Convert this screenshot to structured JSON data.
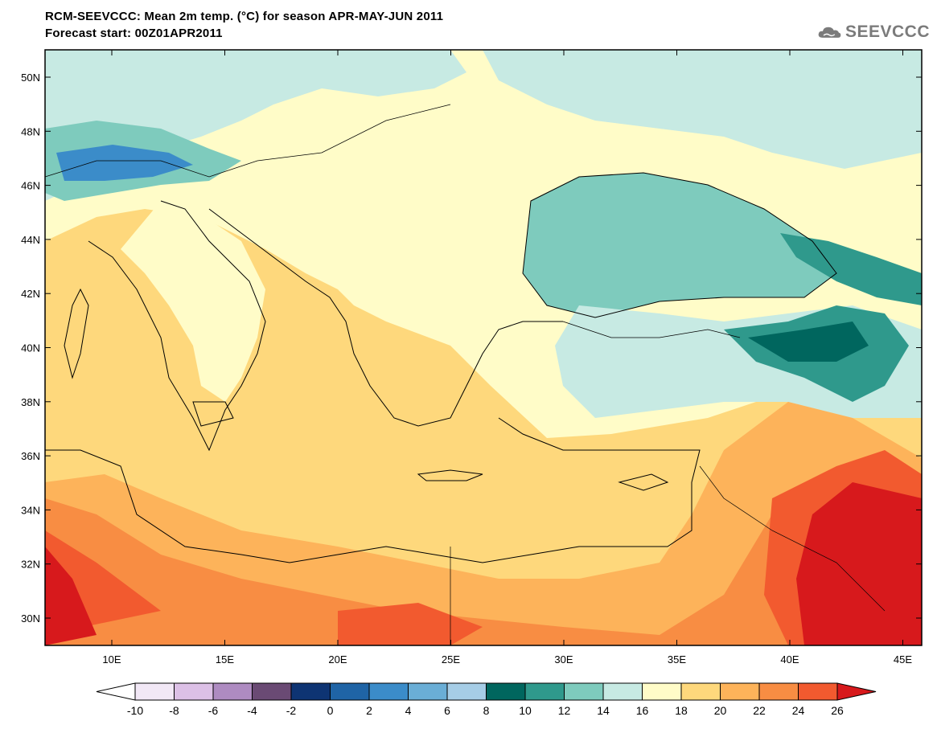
{
  "header": {
    "title_line1": "RCM-SEEVCCC: Mean 2m temp. (°C) for season APR-MAY-JUN 2011",
    "title_line2": "Forecast start: 00Z01APR2011",
    "logo_text": "SEEVCCC"
  },
  "axes": {
    "lat_labels": [
      "50N",
      "48N",
      "46N",
      "44N",
      "42N",
      "40N",
      "38N",
      "36N",
      "34N",
      "32N",
      "30N"
    ],
    "lon_labels": [
      "10E",
      "15E",
      "20E",
      "25E",
      "30E",
      "35E",
      "40E",
      "45E"
    ]
  },
  "colorbar": {
    "labels": [
      "-10",
      "-8",
      "-6",
      "-4",
      "-2",
      "0",
      "2",
      "4",
      "6",
      "8",
      "10",
      "12",
      "14",
      "16",
      "18",
      "20",
      "22",
      "24",
      "26"
    ],
    "low_color": "#ffffff",
    "high_color": "#d7191c",
    "colors": [
      "#f2e8f6",
      "#dcc0e6",
      "#ae8bc1",
      "#6a4a74",
      "#0e3473",
      "#1f64a6",
      "#3b8cc9",
      "#6aaed6",
      "#a6cde6",
      "#00665e",
      "#2f998c",
      "#7ecbbd",
      "#c7eae3",
      "#fffcc8",
      "#fed87c",
      "#fdb35a",
      "#f88d43",
      "#f25a2f"
    ]
  },
  "colors": {
    "land_north": "#fffcc8",
    "sea_warm": "#fed87c",
    "black_sea": "#7ecbbd",
    "hot": "#f25a2f",
    "very_hot": "#d7191c",
    "logo": "#7b7b7b"
  }
}
